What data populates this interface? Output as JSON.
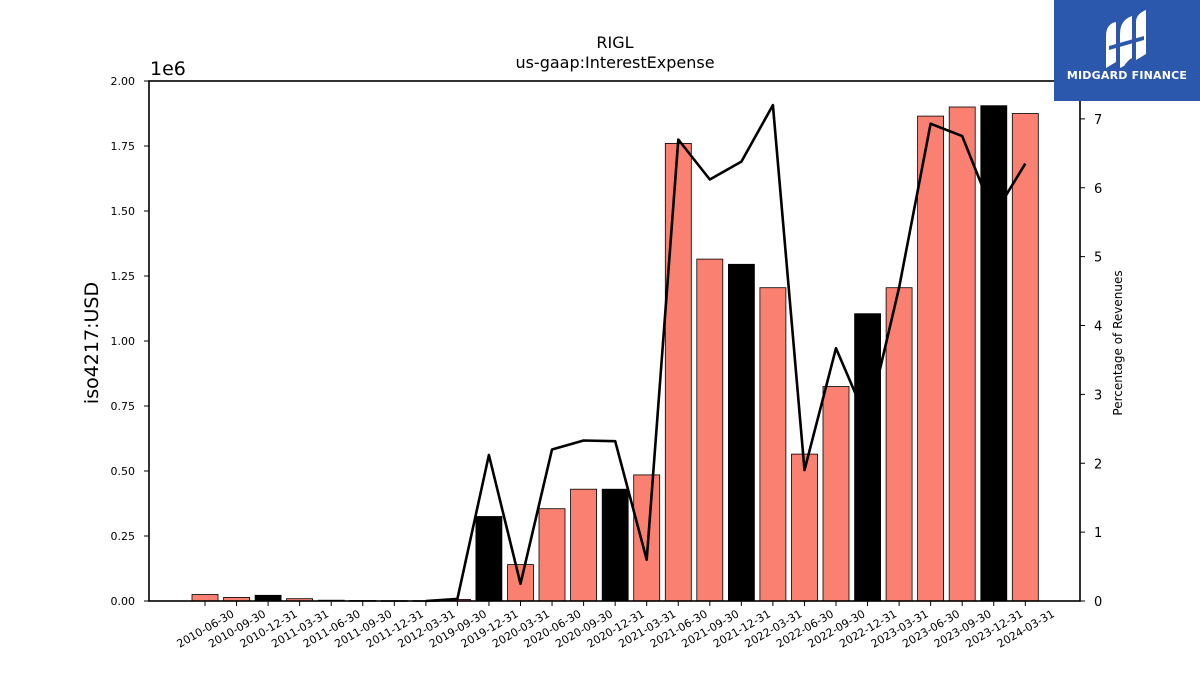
{
  "chart_data": {
    "type": "bar+line",
    "title": "RIGL",
    "subtitle": "us-gaap:InterestExpense",
    "ylabel": "iso4217:USD",
    "y_scale_label": "1e6",
    "y2label": "Percentage of Revenues",
    "ylim": [
      0,
      2000000
    ],
    "y2lim": [
      0,
      7.55
    ],
    "yticks": [
      "0.00",
      "0.25",
      "0.50",
      "0.75",
      "1.00",
      "1.25",
      "1.50",
      "1.75",
      "2.00"
    ],
    "y2ticks": [
      "0",
      "1",
      "2",
      "3",
      "4",
      "5",
      "6",
      "7"
    ],
    "colors": {
      "bar": "#fa8072",
      "bar_q4": "#000000",
      "line": "#000000"
    },
    "categories": [
      "2010-06-30",
      "2010-09-30",
      "2010-12-31",
      "2011-03-31",
      "2011-06-30",
      "2011-09-30",
      "2011-12-31",
      "2012-03-31",
      "2019-09-30",
      "2019-12-31",
      "2020-03-31",
      "2020-06-30",
      "2020-09-30",
      "2020-12-31",
      "2021-03-31",
      "2021-06-30",
      "2021-09-30",
      "2021-12-31",
      "2022-03-31",
      "2022-06-30",
      "2022-09-30",
      "2022-12-31",
      "2023-03-31",
      "2023-06-30",
      "2023-09-30",
      "2023-12-31",
      "2024-03-31"
    ],
    "series": [
      {
        "type": "bar",
        "values": [
          25000,
          14000,
          22000,
          9000,
          3000,
          2000,
          1500,
          1500,
          6000,
          325000,
          140000,
          355000,
          430000,
          430000,
          485000,
          1760000,
          1315000,
          1295000,
          1205000,
          565000,
          825000,
          1105000,
          1205000,
          1865000,
          1900000,
          1905000,
          1875000
        ]
      },
      {
        "type": "line",
        "axis": "right",
        "values": [
          null,
          null,
          null,
          null,
          null,
          null,
          null,
          0,
          0.03,
          2.12,
          0.25,
          2.2,
          2.33,
          2.32,
          0.6,
          6.7,
          6.12,
          6.38,
          7.2,
          1.9,
          3.67,
          2.6,
          4.55,
          6.93,
          6.75,
          5.6,
          6.35
        ]
      }
    ]
  },
  "logo": {
    "text": "MIDGARD FINANCE"
  }
}
